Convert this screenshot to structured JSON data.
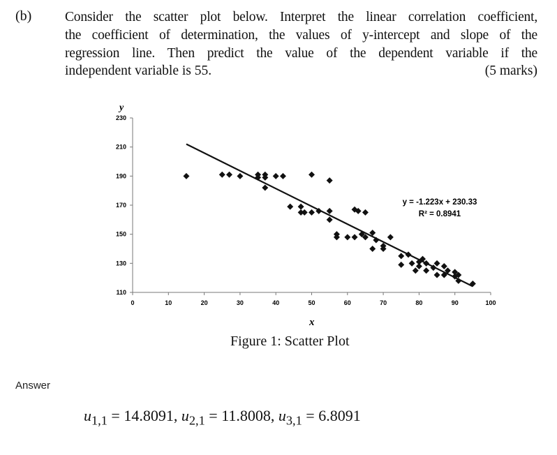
{
  "question": {
    "label": "(b)",
    "lines": [
      "Consider the scatter plot below. Interpret the linear correlation coefficient,",
      "the coefficient of determination, the values of y-intercept and slope of the",
      "regression line.  Then predict the value of the dependent variable if the"
    ],
    "last_line": "independent variable is 55.",
    "marks": "(5 marks)"
  },
  "figure_caption": "Figure 1: Scatter Plot",
  "answer_label": "Answer",
  "answer_equation": "u_{1,1} = 14.8091, u_{2,1} = 11.8008, u_{3,1} = 6.8091",
  "answer_parts": [
    {
      "var": "u",
      "sub": "1,1",
      "value": "14.8091"
    },
    {
      "var": "u",
      "sub": "2,1",
      "value": "11.8008"
    },
    {
      "var": "u",
      "sub": "3,1",
      "value": "6.8091"
    }
  ],
  "chart_data": {
    "type": "scatter",
    "title": "",
    "xlabel": "x",
    "ylabel": "y",
    "xlim": [
      0,
      100
    ],
    "ylim": [
      110,
      230
    ],
    "xticks": [
      "0",
      "10",
      "20",
      "30",
      "40",
      "50",
      "60",
      "70",
      "80",
      "90",
      "100"
    ],
    "yticks": [
      "230",
      "210",
      "190",
      "170",
      "150",
      "130",
      "110"
    ],
    "grid": false,
    "trendline": {
      "slope": -1.223,
      "intercept": 230.33,
      "x_range": [
        15,
        95
      ]
    },
    "annotation": {
      "equation": "y = -1.223x + 230.33",
      "r_squared": "R² = 0.8941"
    },
    "color": "#111111",
    "points": [
      [
        15,
        190
      ],
      [
        25,
        191
      ],
      [
        27,
        191
      ],
      [
        30,
        190
      ],
      [
        35,
        191
      ],
      [
        35,
        189
      ],
      [
        37,
        191
      ],
      [
        37,
        189
      ],
      [
        37,
        182
      ],
      [
        40,
        190
      ],
      [
        42,
        190
      ],
      [
        44,
        169
      ],
      [
        47,
        169
      ],
      [
        47,
        165
      ],
      [
        48,
        165
      ],
      [
        50,
        165
      ],
      [
        50,
        191
      ],
      [
        52,
        166
      ],
      [
        55,
        187
      ],
      [
        55,
        166
      ],
      [
        55,
        160
      ],
      [
        57,
        150
      ],
      [
        57,
        148
      ],
      [
        60,
        148
      ],
      [
        62,
        148
      ],
      [
        62,
        167
      ],
      [
        63,
        166
      ],
      [
        65,
        165
      ],
      [
        64,
        150
      ],
      [
        65,
        148
      ],
      [
        67,
        151
      ],
      [
        67,
        140
      ],
      [
        68,
        146
      ],
      [
        70,
        142
      ],
      [
        70,
        140
      ],
      [
        72,
        148
      ],
      [
        75,
        135
      ],
      [
        75,
        129
      ],
      [
        77,
        136
      ],
      [
        78,
        130
      ],
      [
        79,
        125
      ],
      [
        80,
        131
      ],
      [
        80,
        128
      ],
      [
        81,
        133
      ],
      [
        82,
        130
      ],
      [
        82,
        125
      ],
      [
        84,
        127
      ],
      [
        85,
        130
      ],
      [
        85,
        122
      ],
      [
        87,
        128
      ],
      [
        87,
        122
      ],
      [
        88,
        125
      ],
      [
        90,
        124
      ],
      [
        90,
        121
      ],
      [
        91,
        122
      ],
      [
        91,
        118
      ],
      [
        95,
        116
      ]
    ]
  }
}
